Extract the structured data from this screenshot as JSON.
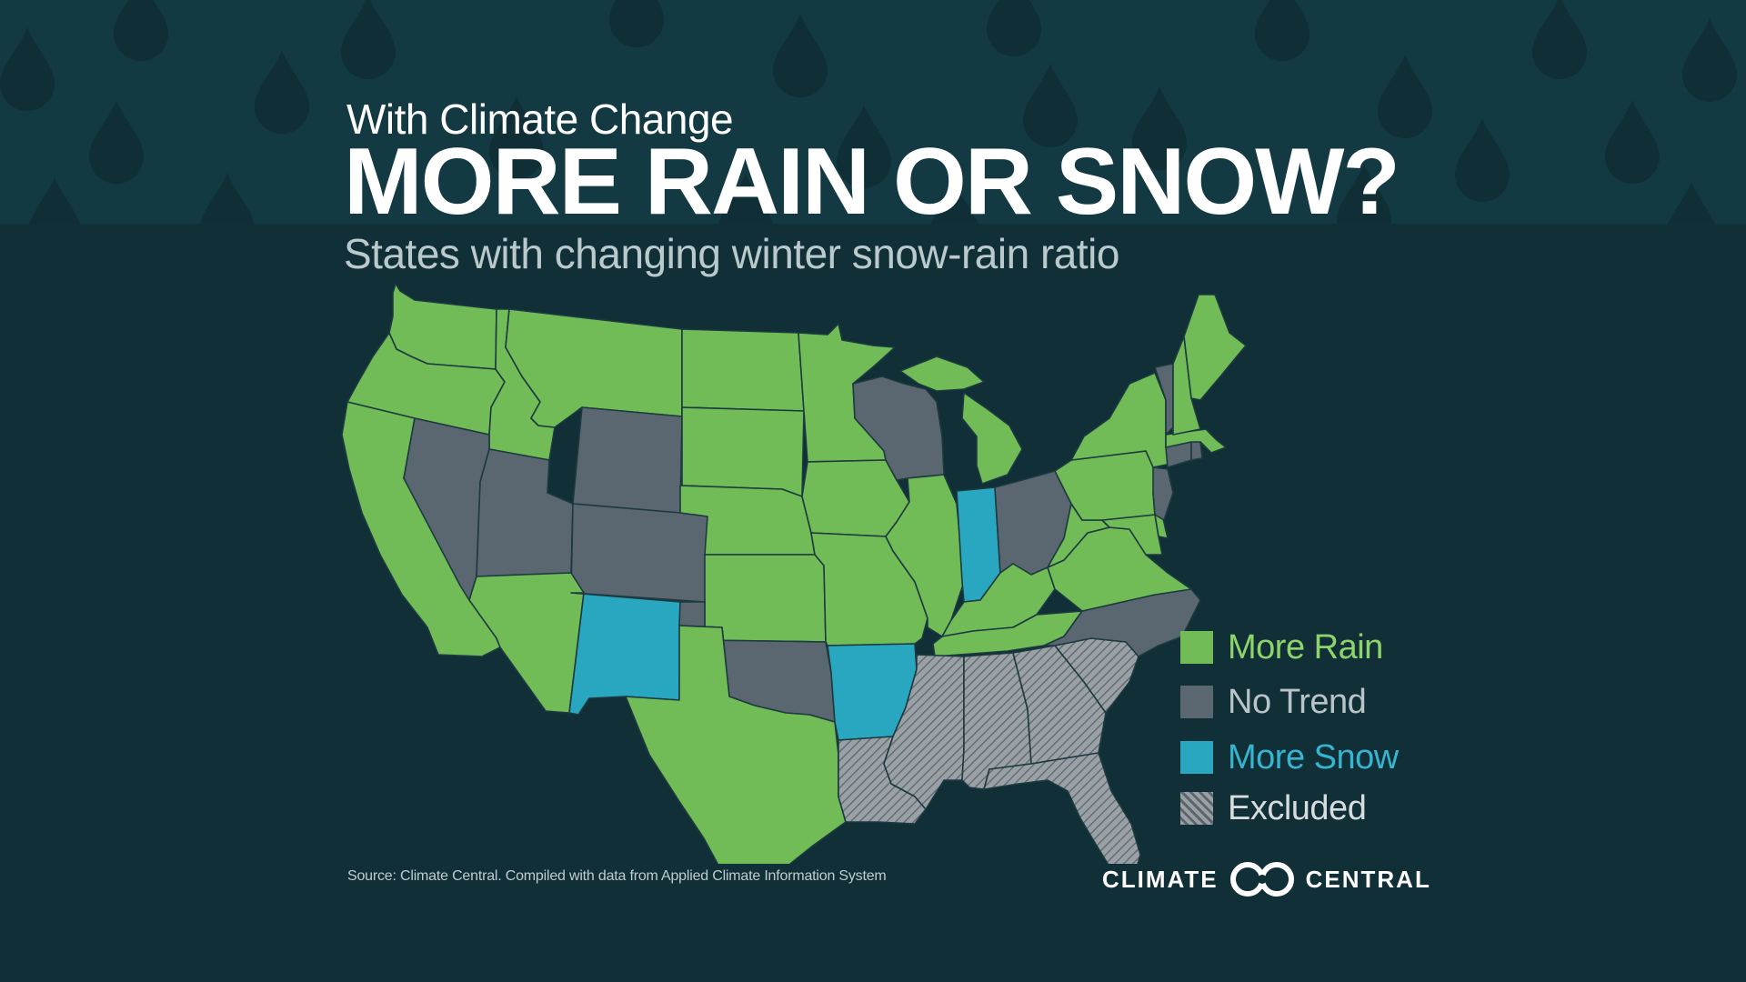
{
  "title": {
    "kicker": "With Climate Change",
    "main": "MORE RAIN OR SNOW?",
    "subtitle": "States with changing winter snow-rain ratio"
  },
  "colors": {
    "background": "#112f37",
    "band": "#133a43",
    "drop": "#0f2e36",
    "more_rain": "#71bc56",
    "no_trend": "#5b6770",
    "more_snow": "#29a6c0",
    "excluded": "#8f969b",
    "outline": "#1c3a40"
  },
  "legend": [
    {
      "key": "more_rain",
      "label": "More Rain",
      "label_color": "#8fd46a"
    },
    {
      "key": "no_trend",
      "label": "No Trend",
      "label_color": "#b9c4c8"
    },
    {
      "key": "more_snow",
      "label": "More Snow",
      "label_color": "#35b5d0"
    },
    {
      "key": "excluded",
      "label": "Excluded",
      "label_color": "#d7dcde"
    }
  ],
  "map_data": {
    "more_rain": [
      "WA",
      "OR",
      "CA",
      "ID",
      "MT",
      "AZ",
      "ND",
      "SD",
      "NE",
      "KS",
      "TX",
      "MN",
      "IA",
      "MO",
      "IL",
      "MI",
      "KY",
      "TN",
      "WV",
      "VA",
      "MD",
      "PA",
      "NY",
      "NH",
      "ME",
      "MA",
      "DE"
    ],
    "no_trend": [
      "NV",
      "UT",
      "WY",
      "CO",
      "OK",
      "WI",
      "OH",
      "NC",
      "VT",
      "CT",
      "RI",
      "NJ"
    ],
    "more_snow": [
      "NM",
      "AR",
      "IN"
    ],
    "excluded": [
      "LA",
      "MS",
      "AL",
      "GA",
      "SC",
      "FL"
    ]
  },
  "source": "Source: Climate Central. Compiled with data from Applied Climate Information System",
  "logo": {
    "left_word": "CLIMATE",
    "right_word": "CENTRAL",
    "mark": "climate-central-logo-mark"
  }
}
